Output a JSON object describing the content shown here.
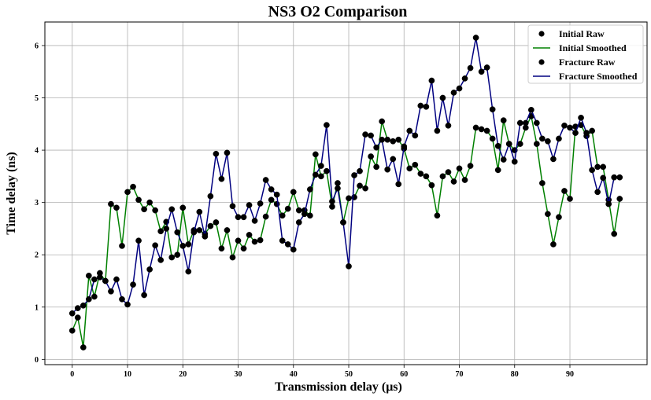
{
  "chart_data": {
    "type": "line",
    "title": "NS3 O2 Comparison",
    "xlabel": "Transmission delay (μs)",
    "ylabel": "Time delay (ns)",
    "xlim": [
      -4.95,
      103.95
    ],
    "ylim": [
      -0.1,
      6.45
    ],
    "xticks": [
      0,
      10,
      20,
      30,
      40,
      50,
      60,
      70,
      80,
      90
    ],
    "yticks": [
      0,
      1,
      2,
      3,
      4,
      5,
      6
    ],
    "grid": true,
    "legend_position": "top-right",
    "x": [
      0,
      1,
      2,
      3,
      4,
      5,
      6,
      7,
      8,
      9,
      10,
      11,
      12,
      13,
      14,
      15,
      16,
      17,
      18,
      19,
      20,
      21,
      22,
      23,
      24,
      25,
      26,
      27,
      28,
      29,
      30,
      31,
      32,
      33,
      34,
      35,
      36,
      37,
      38,
      39,
      40,
      41,
      42,
      43,
      44,
      45,
      46,
      47,
      48,
      49,
      50,
      51,
      52,
      53,
      54,
      55,
      56,
      57,
      58,
      59,
      60,
      61,
      62,
      63,
      64,
      65,
      66,
      67,
      68,
      69,
      70,
      71,
      72,
      73,
      74,
      75,
      76,
      77,
      78,
      79,
      80,
      81,
      82,
      83,
      84,
      85,
      86,
      87,
      88,
      89,
      90,
      91,
      92,
      93,
      94,
      95,
      96,
      97,
      98,
      99
    ],
    "series": [
      {
        "name": "Initial Raw",
        "kind": "scatter",
        "color": "#000000",
        "values": [
          0.55,
          0.8,
          0.23,
          1.6,
          1.2,
          1.65,
          1.5,
          2.97,
          2.9,
          2.17,
          3.2,
          3.3,
          3.05,
          2.87,
          3.0,
          2.85,
          2.45,
          2.63,
          1.95,
          2.0,
          2.9,
          2.2,
          2.47,
          2.47,
          2.4,
          2.55,
          2.62,
          2.12,
          2.47,
          1.95,
          2.27,
          2.12,
          2.38,
          2.25,
          2.28,
          2.73,
          3.05,
          2.97,
          2.75,
          2.88,
          3.2,
          2.85,
          2.85,
          2.75,
          3.92,
          3.5,
          3.6,
          2.92,
          3.37,
          2.62,
          3.08,
          3.1,
          3.32,
          3.27,
          3.88,
          3.68,
          4.55,
          4.2,
          4.17,
          4.2,
          4.03,
          3.65,
          3.72,
          3.55,
          3.5,
          3.33,
          2.75,
          3.5,
          3.58,
          3.4,
          3.65,
          3.43,
          3.7,
          4.43,
          4.4,
          4.37,
          4.22,
          3.62,
          4.57,
          4.12,
          4.0,
          4.12,
          4.43,
          4.65,
          4.12,
          3.37,
          2.78,
          2.2,
          2.72,
          3.22,
          3.07,
          4.45,
          4.48,
          4.27,
          4.37,
          3.68,
          3.68,
          3.05,
          2.4,
          3.07
        ]
      },
      {
        "name": "Initial Smoothed",
        "kind": "line",
        "color": "#008000",
        "values": [
          0.55,
          0.8,
          0.23,
          1.6,
          1.2,
          1.65,
          1.5,
          2.97,
          2.9,
          2.17,
          3.2,
          3.3,
          3.05,
          2.87,
          3.0,
          2.85,
          2.45,
          2.63,
          1.95,
          2.0,
          2.9,
          2.2,
          2.47,
          2.47,
          2.4,
          2.55,
          2.62,
          2.12,
          2.47,
          1.95,
          2.27,
          2.12,
          2.38,
          2.25,
          2.28,
          2.73,
          3.05,
          2.97,
          2.75,
          2.88,
          3.2,
          2.85,
          2.85,
          2.75,
          3.92,
          3.5,
          3.6,
          2.92,
          3.37,
          2.62,
          3.08,
          3.1,
          3.32,
          3.27,
          3.88,
          3.68,
          4.55,
          4.2,
          4.17,
          4.2,
          4.03,
          3.65,
          3.72,
          3.55,
          3.5,
          3.33,
          2.75,
          3.5,
          3.58,
          3.4,
          3.65,
          3.43,
          3.7,
          4.43,
          4.4,
          4.37,
          4.22,
          3.62,
          4.57,
          4.12,
          4.0,
          4.12,
          4.43,
          4.65,
          4.12,
          3.37,
          2.78,
          2.2,
          2.72,
          3.22,
          3.07,
          4.45,
          4.48,
          4.27,
          4.37,
          3.68,
          3.68,
          3.05,
          2.4,
          3.07
        ]
      },
      {
        "name": "Fracture Raw",
        "kind": "scatter",
        "color": "#000000",
        "values": [
          0.88,
          0.98,
          1.03,
          1.15,
          1.53,
          1.57,
          1.5,
          1.3,
          1.53,
          1.15,
          1.05,
          1.43,
          2.27,
          1.23,
          1.72,
          2.18,
          1.9,
          2.5,
          2.87,
          2.43,
          2.17,
          1.68,
          2.43,
          2.82,
          2.35,
          3.12,
          3.93,
          3.45,
          3.95,
          2.93,
          2.72,
          2.72,
          2.95,
          2.65,
          2.98,
          3.43,
          3.25,
          3.15,
          2.27,
          2.2,
          2.1,
          2.62,
          2.78,
          3.25,
          3.53,
          3.7,
          4.48,
          3.02,
          3.27,
          2.62,
          1.78,
          3.52,
          3.6,
          4.3,
          4.28,
          4.05,
          4.2,
          3.63,
          3.83,
          3.35,
          4.07,
          4.37,
          4.28,
          4.85,
          4.83,
          5.33,
          4.37,
          5.0,
          4.47,
          5.1,
          5.18,
          5.37,
          5.57,
          6.15,
          5.5,
          5.58,
          4.78,
          4.08,
          3.82,
          4.12,
          3.78,
          4.52,
          4.52,
          4.77,
          4.52,
          4.22,
          4.17,
          3.83,
          4.22,
          4.47,
          4.43,
          4.33,
          4.62,
          4.33,
          3.62,
          3.2,
          3.47,
          2.97,
          3.48,
          3.48
        ]
      },
      {
        "name": "Fracture Smoothed",
        "kind": "line",
        "color": "#000080",
        "values": [
          0.88,
          0.98,
          1.03,
          1.15,
          1.53,
          1.57,
          1.5,
          1.3,
          1.53,
          1.15,
          1.05,
          1.43,
          2.27,
          1.23,
          1.72,
          2.18,
          1.9,
          2.5,
          2.87,
          2.43,
          2.17,
          1.68,
          2.43,
          2.82,
          2.35,
          3.12,
          3.93,
          3.45,
          3.95,
          2.93,
          2.72,
          2.72,
          2.95,
          2.65,
          2.98,
          3.43,
          3.25,
          3.15,
          2.27,
          2.2,
          2.1,
          2.62,
          2.78,
          3.25,
          3.53,
          3.7,
          4.48,
          3.02,
          3.27,
          2.62,
          1.78,
          3.52,
          3.6,
          4.3,
          4.28,
          4.05,
          4.2,
          3.63,
          3.83,
          3.35,
          4.07,
          4.37,
          4.28,
          4.85,
          4.83,
          5.33,
          4.37,
          5.0,
          4.47,
          5.1,
          5.18,
          5.37,
          5.57,
          6.15,
          5.5,
          5.58,
          4.78,
          4.08,
          3.82,
          4.12,
          3.78,
          4.52,
          4.52,
          4.77,
          4.52,
          4.22,
          4.17,
          3.83,
          4.22,
          4.47,
          4.43,
          4.33,
          4.62,
          4.33,
          3.62,
          3.2,
          3.47,
          2.97,
          3.48,
          3.48
        ]
      }
    ],
    "draw_order": [
      1,
      0,
      3,
      2
    ],
    "styles": {
      "grid_color": "#b0b0b0",
      "frame_color": "#000000",
      "marker_edge": "#000000"
    }
  }
}
